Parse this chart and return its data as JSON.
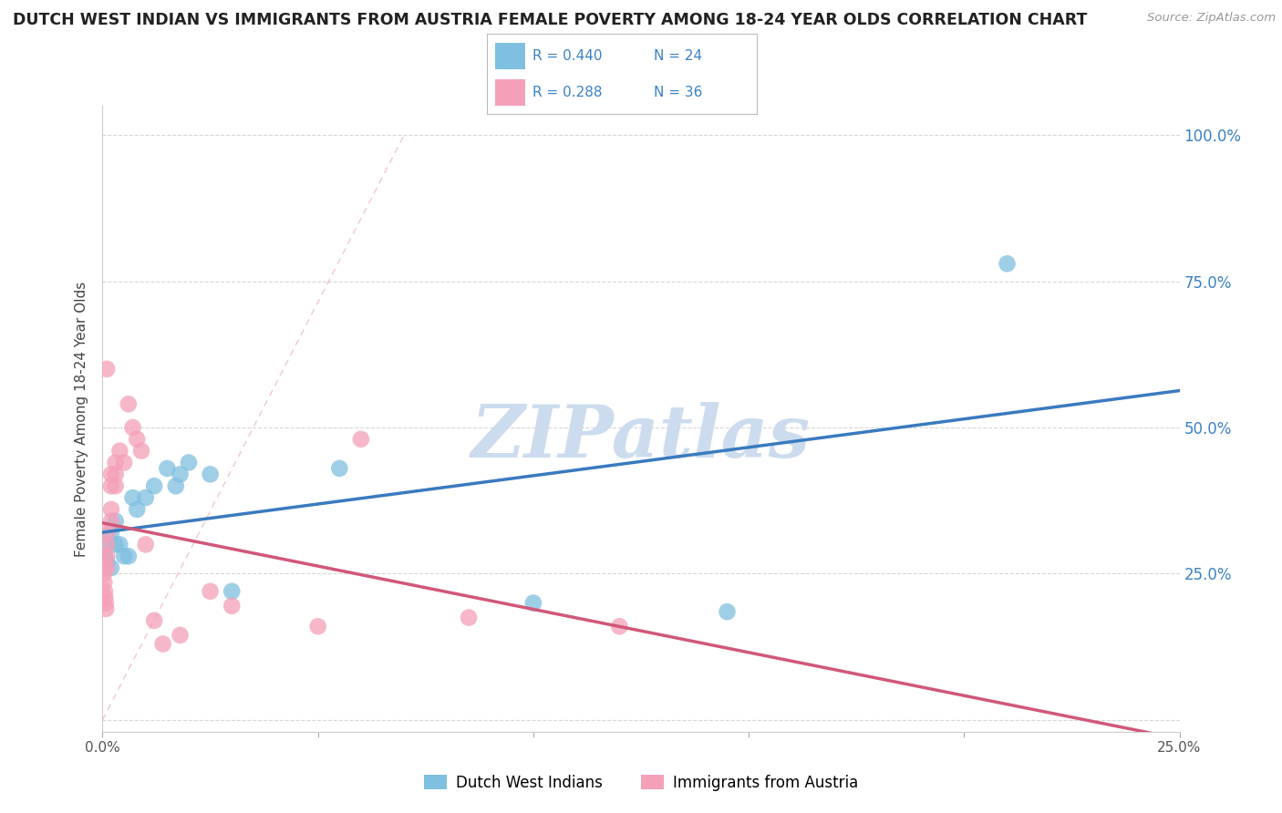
{
  "title": "DUTCH WEST INDIAN VS IMMIGRANTS FROM AUSTRIA FEMALE POVERTY AMONG 18-24 YEAR OLDS CORRELATION CHART",
  "source": "Source: ZipAtlas.com",
  "ylabel": "Female Poverty Among 18-24 Year Olds",
  "xlim": [
    0.0,
    0.25
  ],
  "ylim": [
    -0.02,
    1.05
  ],
  "xtick_positions": [
    0.0,
    0.05,
    0.1,
    0.15,
    0.2,
    0.25
  ],
  "xticklabels": [
    "0.0%",
    "",
    "",
    "",
    "",
    "25.0%"
  ],
  "ytick_positions": [
    0.0,
    0.25,
    0.5,
    0.75,
    1.0
  ],
  "yticklabels_right": [
    "",
    "25.0%",
    "50.0%",
    "75.0%",
    "100.0%"
  ],
  "legend_R1": "0.440",
  "legend_N1": "24",
  "legend_R2": "0.288",
  "legend_N2": "36",
  "color_blue": "#7fbfdf",
  "color_pink": "#f4a0b8",
  "color_blue_line": "#3a7abf",
  "color_pink_line": "#d05878",
  "color_blue_text": "#3a82c4",
  "watermark": "ZIPatlas",
  "watermark_color": "#ccdcee",
  "blue_x": [
    0.0005,
    0.001,
    0.001,
    0.002,
    0.002,
    0.003,
    0.003,
    0.004,
    0.005,
    0.006,
    0.007,
    0.008,
    0.01,
    0.012,
    0.015,
    0.017,
    0.018,
    0.02,
    0.025,
    0.03,
    0.055,
    0.1,
    0.145,
    0.21
  ],
  "blue_y": [
    0.28,
    0.3,
    0.27,
    0.32,
    0.26,
    0.3,
    0.34,
    0.3,
    0.28,
    0.28,
    0.38,
    0.36,
    0.38,
    0.4,
    0.43,
    0.4,
    0.42,
    0.44,
    0.42,
    0.22,
    0.43,
    0.2,
    0.185,
    0.78
  ],
  "pink_x": [
    0.0001,
    0.0002,
    0.0003,
    0.0004,
    0.0005,
    0.0006,
    0.0007,
    0.0008,
    0.001,
    0.001,
    0.001,
    0.001,
    0.001,
    0.002,
    0.002,
    0.002,
    0.002,
    0.003,
    0.003,
    0.003,
    0.004,
    0.005,
    0.006,
    0.007,
    0.008,
    0.009,
    0.01,
    0.012,
    0.014,
    0.018,
    0.025,
    0.03,
    0.05,
    0.06,
    0.085,
    0.12
  ],
  "pink_y": [
    0.28,
    0.265,
    0.25,
    0.235,
    0.22,
    0.21,
    0.2,
    0.19,
    0.32,
    0.3,
    0.28,
    0.26,
    0.6,
    0.42,
    0.4,
    0.36,
    0.34,
    0.44,
    0.42,
    0.4,
    0.46,
    0.44,
    0.54,
    0.5,
    0.48,
    0.46,
    0.3,
    0.17,
    0.13,
    0.145,
    0.22,
    0.195,
    0.16,
    0.48,
    0.175,
    0.16
  ],
  "background_color": "#ffffff",
  "grid_color": "#cccccc"
}
